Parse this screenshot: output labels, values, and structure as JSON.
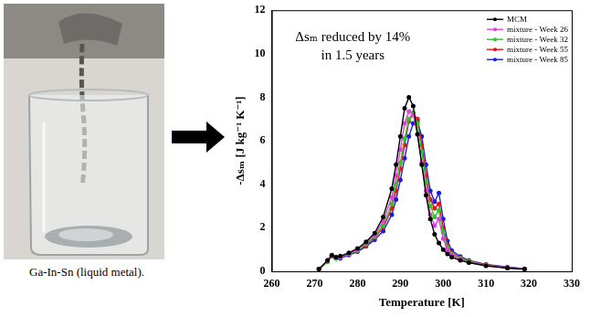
{
  "image": {
    "caption": "Ga-In-Sn (liquid metal)."
  },
  "chart_data": {
    "type": "line",
    "annotation": [
      "Δsₘ reduced by 14%",
      "in 1.5 years"
    ],
    "x_label": "Temperature [K]",
    "y_label": "-Δsₘ [J kg⁻¹ K⁻¹]",
    "x": [
      271,
      273,
      274,
      275,
      276,
      278,
      280,
      282,
      284,
      286,
      288,
      289,
      290,
      291,
      292,
      293,
      294,
      295,
      296,
      297,
      298,
      299,
      300,
      301,
      302,
      304,
      306,
      310,
      315,
      319
    ],
    "series": [
      {
        "name": "MCM",
        "color": "#000000",
        "marker": "circle",
        "line_style": "solid",
        "values": [
          0.1,
          0.5,
          0.75,
          0.65,
          0.7,
          0.85,
          1.05,
          1.35,
          1.75,
          2.5,
          3.8,
          4.9,
          6.2,
          7.5,
          8.0,
          7.6,
          6.3,
          4.9,
          3.5,
          2.4,
          1.7,
          1.3,
          1.0,
          0.8,
          0.65,
          0.5,
          0.4,
          0.25,
          0.15,
          0.1
        ]
      },
      {
        "name": "mixture - Week 26",
        "color": "#e040e0",
        "marker": "circle",
        "line_style": "solid",
        "values": [
          0.1,
          0.5,
          0.7,
          0.65,
          0.65,
          0.8,
          1.0,
          1.3,
          1.65,
          2.3,
          3.4,
          4.4,
          5.6,
          6.8,
          7.35,
          7.2,
          6.3,
          5.0,
          3.7,
          2.6,
          2.1,
          2.4,
          1.5,
          1.0,
          0.75,
          0.55,
          0.42,
          0.26,
          0.16,
          0.1
        ]
      },
      {
        "name": "mixture - Week 32",
        "color": "#22cc22",
        "marker": "circle",
        "line_style": "solid",
        "values": [
          0.1,
          0.45,
          0.7,
          0.6,
          0.65,
          0.8,
          0.95,
          1.25,
          1.6,
          2.1,
          3.1,
          4.0,
          5.0,
          6.1,
          7.0,
          7.3,
          6.8,
          5.5,
          4.1,
          3.0,
          2.5,
          2.8,
          1.8,
          1.1,
          0.8,
          0.6,
          0.45,
          0.28,
          0.17,
          0.1
        ]
      },
      {
        "name": "mixture - Week 55",
        "color": "#ee1111",
        "marker": "circle",
        "line_style": "solid",
        "values": [
          0.1,
          0.45,
          0.7,
          0.6,
          0.65,
          0.8,
          0.95,
          1.2,
          1.55,
          2.0,
          2.9,
          3.7,
          4.7,
          5.8,
          6.9,
          7.25,
          7.0,
          5.8,
          4.4,
          3.3,
          2.9,
          3.1,
          2.0,
          1.2,
          0.85,
          0.62,
          0.47,
          0.3,
          0.18,
          0.11
        ]
      },
      {
        "name": "mixture - Week 85",
        "color": "#1a1aee",
        "marker": "circle",
        "line_style": "solid",
        "values": [
          0.1,
          0.45,
          0.7,
          0.6,
          0.6,
          0.75,
          0.9,
          1.15,
          1.45,
          1.85,
          2.6,
          3.3,
          4.2,
          5.2,
          6.2,
          6.8,
          6.9,
          6.2,
          4.9,
          3.7,
          3.2,
          3.6,
          2.4,
          1.4,
          0.95,
          0.68,
          0.5,
          0.32,
          0.2,
          0.12
        ]
      }
    ],
    "xlim": [
      260,
      330
    ],
    "xticks": [
      260,
      270,
      280,
      290,
      300,
      310,
      320,
      330
    ],
    "ylim": [
      0,
      12
    ],
    "yticks": [
      0,
      2,
      4,
      6,
      8,
      10,
      12
    ],
    "grid": false,
    "legend": "top-right"
  }
}
